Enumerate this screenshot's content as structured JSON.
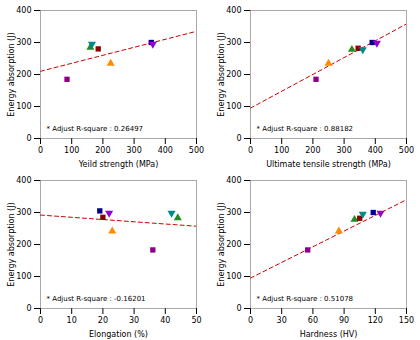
{
  "chart_data": [
    {
      "type": "scatter",
      "xlabel": "Yeild strength (MPa)",
      "ylabel": "Energy absorption (J)",
      "annotation": "* Adjust R-square : 0.26497",
      "xlim": [
        0,
        500
      ],
      "ylim": [
        0,
        400
      ],
      "xticks": [
        0,
        100,
        200,
        300,
        400,
        500
      ],
      "yticks": [
        0,
        100,
        200,
        300,
        400
      ],
      "series": [
        {
          "type": "line",
          "color": "#cc0000",
          "line_style": "dashed",
          "x": [
            0,
            500
          ],
          "values": [
            210,
            335
          ]
        },
        {
          "type": "scatter",
          "color": "#8B008B",
          "marker": "square",
          "x": [
            85
          ],
          "values": [
            185
          ]
        },
        {
          "type": "scatter",
          "color": "#228B22",
          "marker": "triangle-up",
          "x": [
            160
          ],
          "values": [
            285
          ]
        },
        {
          "type": "scatter",
          "color": "#008B8B",
          "marker": "triangle-down",
          "x": [
            165
          ],
          "values": [
            295
          ]
        },
        {
          "type": "scatter",
          "color": "#8B0000",
          "marker": "square",
          "x": [
            185
          ],
          "values": [
            280
          ]
        },
        {
          "type": "scatter",
          "color": "#FF8C00",
          "marker": "triangle-up",
          "x": [
            225
          ],
          "values": [
            235
          ]
        },
        {
          "type": "scatter",
          "color": "#00008B",
          "marker": "square",
          "x": [
            355
          ],
          "values": [
            300
          ]
        },
        {
          "type": "scatter",
          "color": "#9400D3",
          "marker": "triangle-down",
          "x": [
            360
          ],
          "values": [
            295
          ]
        }
      ]
    },
    {
      "type": "scatter",
      "xlabel": "Ultimate tensile strength (MPa)",
      "ylabel": "Energy absorption (J)",
      "annotation": "* Adjust R-square : 0.88182",
      "xlim": [
        0,
        500
      ],
      "ylim": [
        0,
        400
      ],
      "xticks": [
        0,
        100,
        200,
        300,
        400,
        500
      ],
      "yticks": [
        0,
        100,
        200,
        300,
        400
      ],
      "series": [
        {
          "type": "line",
          "color": "#cc0000",
          "line_style": "dashed",
          "x": [
            0,
            500
          ],
          "values": [
            95,
            358
          ]
        },
        {
          "type": "scatter",
          "color": "#8B008B",
          "marker": "square",
          "x": [
            210
          ],
          "values": [
            185
          ]
        },
        {
          "type": "scatter",
          "color": "#FF8C00",
          "marker": "triangle-up",
          "x": [
            250
          ],
          "values": [
            235
          ]
        },
        {
          "type": "scatter",
          "color": "#228B22",
          "marker": "triangle-up",
          "x": [
            325
          ],
          "values": [
            278
          ]
        },
        {
          "type": "scatter",
          "color": "#8B0000",
          "marker": "square",
          "x": [
            345
          ],
          "values": [
            282
          ]
        },
        {
          "type": "scatter",
          "color": "#008B8B",
          "marker": "triangle-down",
          "x": [
            360
          ],
          "values": [
            278
          ]
        },
        {
          "type": "scatter",
          "color": "#00008B",
          "marker": "square",
          "x": [
            390
          ],
          "values": [
            300
          ]
        },
        {
          "type": "scatter",
          "color": "#9400D3",
          "marker": "triangle-down",
          "x": [
            405
          ],
          "values": [
            298
          ]
        }
      ]
    },
    {
      "type": "scatter",
      "xlabel": "Elongation (%)",
      "ylabel": "Energy absorption (J)",
      "annotation": "* Adjust R-square : -0.16201",
      "xlim": [
        0,
        50
      ],
      "ylim": [
        0,
        400
      ],
      "xticks": [
        0,
        10,
        20,
        30,
        40,
        50
      ],
      "yticks": [
        0,
        100,
        200,
        300,
        400
      ],
      "series": [
        {
          "type": "line",
          "color": "#cc0000",
          "line_style": "dashed",
          "x": [
            0,
            50
          ],
          "values": [
            292,
            257
          ]
        },
        {
          "type": "scatter",
          "color": "#00008B",
          "marker": "square",
          "x": [
            19
          ],
          "values": [
            305
          ]
        },
        {
          "type": "scatter",
          "color": "#8B0000",
          "marker": "square",
          "x": [
            20
          ],
          "values": [
            285
          ]
        },
        {
          "type": "scatter",
          "color": "#9400D3",
          "marker": "triangle-down",
          "x": [
            22
          ],
          "values": [
            298
          ]
        },
        {
          "type": "scatter",
          "color": "#FF8C00",
          "marker": "triangle-up",
          "x": [
            23
          ],
          "values": [
            242
          ]
        },
        {
          "type": "scatter",
          "color": "#8B008B",
          "marker": "square",
          "x": [
            36
          ],
          "values": [
            183
          ]
        },
        {
          "type": "scatter",
          "color": "#008B8B",
          "marker": "triangle-down",
          "x": [
            42
          ],
          "values": [
            298
          ]
        },
        {
          "type": "scatter",
          "color": "#228B22",
          "marker": "triangle-up",
          "x": [
            44
          ],
          "values": [
            283
          ]
        }
      ]
    },
    {
      "type": "scatter",
      "xlabel": "Hardness (HV)",
      "ylabel": "Energy absorption (J)",
      "annotation": "* Adjust R-square : 0.51078",
      "xlim": [
        0,
        150
      ],
      "ylim": [
        0,
        400
      ],
      "xticks": [
        0,
        30,
        60,
        90,
        120,
        150
      ],
      "yticks": [
        0,
        100,
        200,
        300,
        400
      ],
      "series": [
        {
          "type": "line",
          "color": "#cc0000",
          "line_style": "dashed",
          "x": [
            0,
            150
          ],
          "values": [
            95,
            340
          ]
        },
        {
          "type": "scatter",
          "color": "#8B008B",
          "marker": "square",
          "x": [
            55
          ],
          "values": [
            183
          ]
        },
        {
          "type": "scatter",
          "color": "#FF8C00",
          "marker": "triangle-up",
          "x": [
            85
          ],
          "values": [
            242
          ]
        },
        {
          "type": "scatter",
          "color": "#228B22",
          "marker": "triangle-up",
          "x": [
            100
          ],
          "values": [
            278
          ]
        },
        {
          "type": "scatter",
          "color": "#8B0000",
          "marker": "square",
          "x": [
            105
          ],
          "values": [
            282
          ]
        },
        {
          "type": "scatter",
          "color": "#008B8B",
          "marker": "triangle-down",
          "x": [
            108
          ],
          "values": [
            295
          ]
        },
        {
          "type": "scatter",
          "color": "#00008B",
          "marker": "square",
          "x": [
            118
          ],
          "values": [
            300
          ]
        },
        {
          "type": "scatter",
          "color": "#9400D3",
          "marker": "triangle-down",
          "x": [
            125
          ],
          "values": [
            298
          ]
        }
      ]
    }
  ]
}
